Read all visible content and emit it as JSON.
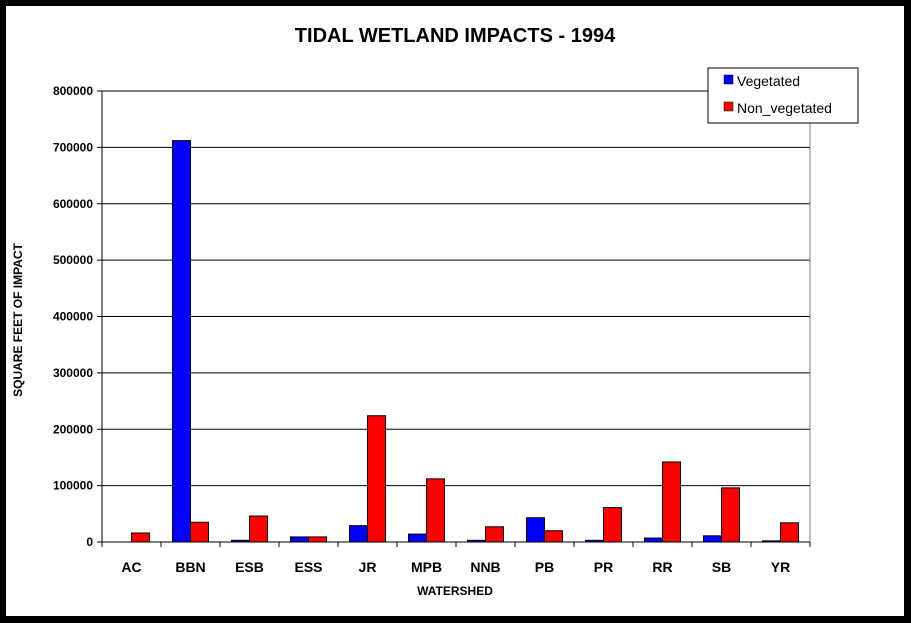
{
  "chart_data": {
    "type": "bar",
    "title": "TIDAL WETLAND IMPACTS - 1994",
    "xlabel": "WATERSHED",
    "ylabel": "SQUARE FEET OF IMPACT",
    "ylim": [
      0,
      800000
    ],
    "yticks": [
      0,
      100000,
      200000,
      300000,
      400000,
      500000,
      600000,
      700000,
      800000
    ],
    "ytick_labels": [
      "0",
      "100000",
      "200000",
      "300000",
      "400000",
      "500000",
      "600000",
      "700000",
      "800000"
    ],
    "grid": true,
    "legend_position": "top-right",
    "categories": [
      "AC",
      "BBN",
      "ESB",
      "ESS",
      "JR",
      "MPB",
      "NNB",
      "PB",
      "PR",
      "RR",
      "SB",
      "YR"
    ],
    "series": [
      {
        "name": "Vegetated",
        "color": "#0000ff",
        "values": [
          0,
          712000,
          3000,
          9000,
          29000,
          14000,
          3000,
          43000,
          3000,
          7000,
          11000,
          2000
        ]
      },
      {
        "name": "Non_vegetated",
        "color": "#ff0000",
        "values": [
          16000,
          35000,
          46000,
          9000,
          224000,
          112000,
          27000,
          20000,
          61000,
          142000,
          96000,
          34000
        ]
      }
    ]
  }
}
